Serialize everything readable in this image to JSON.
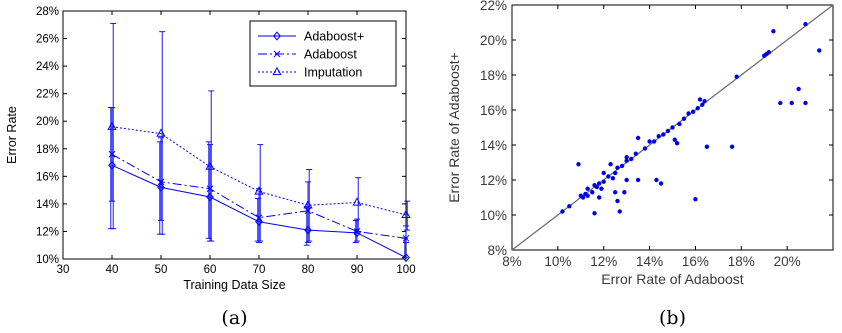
{
  "chart_data": [
    {
      "type": "line",
      "panel_label": "(a)",
      "xlabel": "Training Data Size",
      "ylabel": "Error Rate",
      "xlim": [
        30,
        100
      ],
      "ylim": [
        10,
        28
      ],
      "x_ticks": [
        "30",
        "40",
        "50",
        "60",
        "70",
        "80",
        "90",
        "100"
      ],
      "y_ticks": [
        "10%",
        "12%",
        "14%",
        "16%",
        "18%",
        "20%",
        "22%",
        "24%",
        "26%",
        "28%"
      ],
      "x": [
        40,
        50,
        60,
        70,
        80,
        90,
        100
      ],
      "legend_position": "top-right",
      "grid": false,
      "color": "#0000ff",
      "series": [
        {
          "name": "Adaboost+",
          "marker": "diamond",
          "line": "solid",
          "values": [
            16.8,
            15.2,
            14.5,
            12.7,
            12.1,
            11.9,
            10.1
          ],
          "err_low": [
            12.2,
            11.8,
            11.5,
            11.3,
            11.0,
            11.2,
            10.1
          ],
          "err_high": [
            21.0,
            18.5,
            18.5,
            14.4,
            13.8,
            12.8,
            11.5
          ]
        },
        {
          "name": "Adaboost",
          "marker": "x",
          "line": "dashdot",
          "values": [
            17.6,
            15.6,
            15.1,
            13.0,
            13.5,
            12.0,
            11.5
          ],
          "err_low": [
            14.2,
            12.8,
            11.3,
            11.2,
            11.2,
            11.3,
            11.2
          ],
          "err_high": [
            21.0,
            18.8,
            18.3,
            15.1,
            15.6,
            12.9,
            12.4
          ]
        },
        {
          "name": "Imputation",
          "marker": "triangle",
          "line": "dotted",
          "values": [
            19.6,
            19.1,
            16.7,
            14.9,
            13.9,
            14.1,
            13.2
          ],
          "err_low": [
            12.2,
            11.8,
            11.3,
            11.3,
            11.3,
            12.0,
            12.1
          ],
          "err_high": [
            27.1,
            26.5,
            22.2,
            18.3,
            16.5,
            15.9,
            14.2
          ]
        }
      ]
    },
    {
      "type": "scatter",
      "panel_label": "(b)",
      "xlabel": "Error Rate of Adaboost",
      "ylabel": "Error Rate of Adaboost+",
      "xlim": [
        8,
        22
      ],
      "ylim": [
        8,
        22
      ],
      "x_ticks": [
        "8%",
        "10%",
        "12%",
        "14%",
        "16%",
        "18%",
        "20%"
      ],
      "y_ticks": [
        "8%",
        "10%",
        "12%",
        "14%",
        "16%",
        "18%",
        "20%",
        "22%"
      ],
      "diagonal": true,
      "grid": false,
      "point_color": "#0000ee",
      "line_color": "#707070",
      "points": [
        [
          10.2,
          10.2
        ],
        [
          10.5,
          10.5
        ],
        [
          10.9,
          12.9
        ],
        [
          11.0,
          11.1
        ],
        [
          11.1,
          11.0
        ],
        [
          11.2,
          11.2
        ],
        [
          11.3,
          11.1
        ],
        [
          11.3,
          11.5
        ],
        [
          11.5,
          11.3
        ],
        [
          11.6,
          10.1
        ],
        [
          11.6,
          11.7
        ],
        [
          11.7,
          11.6
        ],
        [
          11.8,
          11.8
        ],
        [
          11.8,
          11.0
        ],
        [
          11.9,
          11.5
        ],
        [
          12.0,
          11.9
        ],
        [
          12.0,
          12.4
        ],
        [
          12.2,
          12.2
        ],
        [
          12.3,
          12.9
        ],
        [
          12.4,
          12.1
        ],
        [
          12.5,
          12.4
        ],
        [
          12.5,
          11.3
        ],
        [
          12.6,
          12.7
        ],
        [
          12.6,
          10.8
        ],
        [
          12.7,
          10.2
        ],
        [
          12.8,
          12.8
        ],
        [
          12.9,
          11.3
        ],
        [
          13.0,
          12.0
        ],
        [
          13.0,
          13.3
        ],
        [
          13.0,
          13.1
        ],
        [
          13.2,
          13.2
        ],
        [
          13.4,
          13.5
        ],
        [
          13.5,
          14.4
        ],
        [
          13.5,
          12.0
        ],
        [
          13.8,
          13.8
        ],
        [
          14.0,
          14.2
        ],
        [
          14.2,
          14.2
        ],
        [
          14.3,
          12.0
        ],
        [
          14.4,
          14.5
        ],
        [
          14.5,
          11.8
        ],
        [
          14.6,
          14.6
        ],
        [
          14.8,
          14.8
        ],
        [
          15.0,
          15.0
        ],
        [
          15.1,
          14.3
        ],
        [
          15.2,
          14.1
        ],
        [
          15.3,
          15.2
        ],
        [
          15.5,
          15.5
        ],
        [
          15.7,
          15.8
        ],
        [
          15.9,
          15.9
        ],
        [
          16.0,
          10.9
        ],
        [
          16.1,
          16.1
        ],
        [
          16.2,
          16.6
        ],
        [
          16.3,
          16.3
        ],
        [
          16.4,
          16.5
        ],
        [
          16.5,
          13.9
        ],
        [
          17.6,
          13.9
        ],
        [
          17.8,
          17.9
        ],
        [
          19.0,
          19.1
        ],
        [
          19.1,
          19.2
        ],
        [
          19.2,
          19.3
        ],
        [
          19.4,
          20.5
        ],
        [
          19.7,
          16.4
        ],
        [
          20.2,
          16.4
        ],
        [
          20.5,
          17.2
        ],
        [
          20.8,
          16.4
        ],
        [
          20.8,
          20.9
        ],
        [
          21.4,
          19.4
        ]
      ]
    }
  ]
}
